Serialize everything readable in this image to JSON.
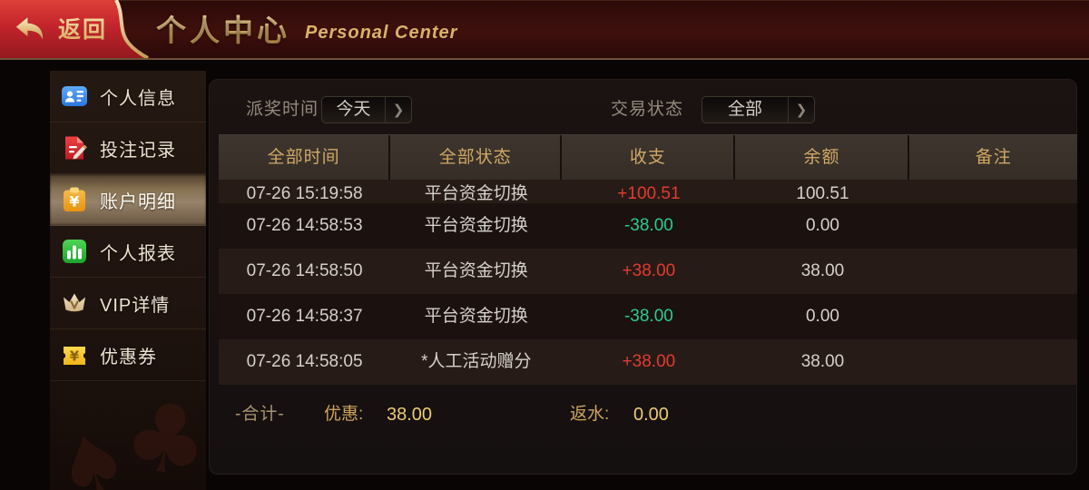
{
  "header": {
    "back_label": "返回",
    "title": "个人中心",
    "subtitle": "Personal Center"
  },
  "sidebar": {
    "items": [
      {
        "key": "personal-info",
        "label": "个人信息",
        "icon": "id-card-icon",
        "selected": false
      },
      {
        "key": "bet-records",
        "label": "投注记录",
        "icon": "bet-record-icon",
        "selected": false
      },
      {
        "key": "account-details",
        "label": "账户明细",
        "icon": "account-detail-icon",
        "selected": true
      },
      {
        "key": "personal-report",
        "label": "个人报表",
        "icon": "report-chart-icon",
        "selected": false
      },
      {
        "key": "vip-details",
        "label": "VIP详情",
        "icon": "vip-crown-icon",
        "selected": false
      },
      {
        "key": "coupons",
        "label": "优惠券",
        "icon": "coupon-ticket-icon",
        "selected": false
      }
    ]
  },
  "filters": {
    "time_label": "派奖时间",
    "time_value": "今天",
    "status_label": "交易状态",
    "status_value": "全部"
  },
  "table": {
    "columns": [
      "全部时间",
      "全部状态",
      "收支",
      "余额",
      "备注"
    ],
    "rows": [
      {
        "time": "07-26 15:19:58",
        "status": "平台资金切换",
        "amount": "+100.51",
        "direction": "in",
        "balance": "100.51",
        "note": "",
        "partial": true
      },
      {
        "time": "07-26 14:58:53",
        "status": "平台资金切换",
        "amount": "-38.00",
        "direction": "out",
        "balance": "0.00",
        "note": "",
        "partial": false
      },
      {
        "time": "07-26 14:58:50",
        "status": "平台资金切换",
        "amount": "+38.00",
        "direction": "in",
        "balance": "38.00",
        "note": "",
        "partial": false
      },
      {
        "time": "07-26 14:58:37",
        "status": "平台资金切换",
        "amount": "-38.00",
        "direction": "out",
        "balance": "0.00",
        "note": "",
        "partial": false
      },
      {
        "time": "07-26 14:58:05",
        "status": "*人工活动赠分",
        "amount": "+38.00",
        "direction": "in",
        "balance": "38.00",
        "note": "",
        "partial": false
      }
    ]
  },
  "summary": {
    "total_label": "-合计-",
    "bonus_label": "优惠:",
    "bonus_value": "38.00",
    "rebate_label": "返水:",
    "rebate_value": "0.00"
  },
  "colors": {
    "income_red": "#e23b30",
    "expense_green": "#2fc98e",
    "gold_text": "#d0a766",
    "back_button_red": "#c3242b",
    "selected_item_tan": "#97836a"
  }
}
